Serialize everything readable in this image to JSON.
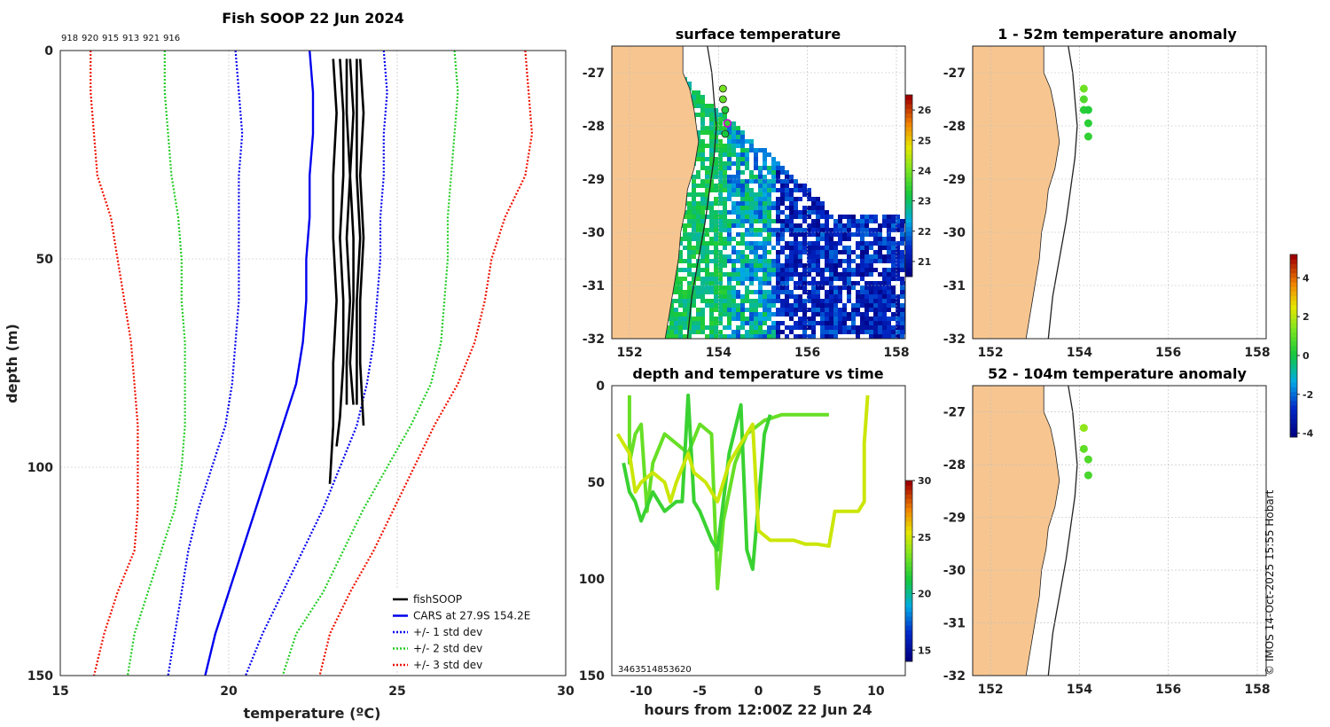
{
  "chart_data": [
    {
      "id": "profile",
      "type": "line",
      "title": "Fish SOOP 22 Jun 2024",
      "xlabel": "temperature (ºC)",
      "ylabel": "depth (m)",
      "xlim": [
        15,
        30
      ],
      "ylim": [
        0,
        150
      ],
      "xticks": [
        "15",
        "20",
        "25",
        "30"
      ],
      "yticks": [
        "0",
        "50",
        "100",
        "150"
      ],
      "probe_ids": [
        "918",
        "920",
        "915",
        "913",
        "921",
        "916"
      ],
      "depth": [
        0,
        10,
        20,
        30,
        40,
        50,
        60,
        70,
        80,
        90,
        100,
        110,
        120,
        130,
        140,
        150
      ],
      "series": [
        {
          "name": "CARS at 27.9S 154.2E",
          "color": "#0000ee",
          "style": "solid",
          "values": [
            22.4,
            22.5,
            22.5,
            22.4,
            22.4,
            22.3,
            22.3,
            22.2,
            22.0,
            21.6,
            21.2,
            20.8,
            20.4,
            20.0,
            19.6,
            19.3
          ]
        },
        {
          "name": "+1 std",
          "color": "#0000ee",
          "style": "dotted",
          "values": [
            24.6,
            24.7,
            24.6,
            24.6,
            24.5,
            24.5,
            24.4,
            24.3,
            24.1,
            23.8,
            23.3,
            22.8,
            22.2,
            21.6,
            21.0,
            20.5
          ]
        },
        {
          "name": "-1 std",
          "color": "#0000ee",
          "style": "dotted",
          "values": [
            20.2,
            20.3,
            20.4,
            20.3,
            20.3,
            20.3,
            20.3,
            20.2,
            20.1,
            19.9,
            19.5,
            19.1,
            18.8,
            18.6,
            18.4,
            18.2
          ]
        },
        {
          "name": "+2 std",
          "color": "#22cc22",
          "style": "dotted",
          "values": [
            26.7,
            26.8,
            26.7,
            26.6,
            26.5,
            26.5,
            26.4,
            26.3,
            26.0,
            25.4,
            24.7,
            24.0,
            23.4,
            22.8,
            22.0,
            21.6
          ]
        },
        {
          "name": "-2 std",
          "color": "#22cc22",
          "style": "dotted",
          "values": [
            18.1,
            18.1,
            18.2,
            18.3,
            18.5,
            18.6,
            18.6,
            18.7,
            18.7,
            18.7,
            18.6,
            18.4,
            18.0,
            17.6,
            17.2,
            17.0
          ]
        },
        {
          "name": "+3 std",
          "color": "#ee1100",
          "style": "dotted",
          "values": [
            28.8,
            28.9,
            29.0,
            28.8,
            28.2,
            27.8,
            27.6,
            27.3,
            26.8,
            26.1,
            25.5,
            24.9,
            24.3,
            23.6,
            23.0,
            22.7
          ]
        },
        {
          "name": "-3 std",
          "color": "#ee1100",
          "style": "dotted",
          "values": [
            15.9,
            15.9,
            16.0,
            16.1,
            16.5,
            16.7,
            16.9,
            17.1,
            17.2,
            17.3,
            17.3,
            17.3,
            17.2,
            16.7,
            16.3,
            16.0
          ]
        }
      ],
      "fishsoop_casts": [
        {
          "depth": [
            2,
            15,
            30,
            45,
            60,
            75,
            90,
            104
          ],
          "temp": [
            23.1,
            23.2,
            23.1,
            23.1,
            23.2,
            23.1,
            23.1,
            23.0
          ]
        },
        {
          "depth": [
            2,
            15,
            30,
            45,
            60,
            75,
            88,
            95
          ],
          "temp": [
            23.3,
            23.4,
            23.4,
            23.3,
            23.4,
            23.4,
            23.3,
            23.2
          ]
        },
        {
          "depth": [
            2,
            15,
            30,
            45,
            60,
            75,
            85
          ],
          "temp": [
            23.5,
            23.5,
            23.6,
            23.5,
            23.6,
            23.5,
            23.5
          ]
        },
        {
          "depth": [
            2,
            15,
            30,
            45,
            60,
            75,
            85
          ],
          "temp": [
            23.6,
            23.7,
            23.6,
            23.7,
            23.7,
            23.6,
            23.7
          ]
        },
        {
          "depth": [
            2,
            15,
            30,
            45,
            60,
            75,
            85
          ],
          "temp": [
            23.8,
            23.8,
            23.8,
            23.9,
            23.8,
            23.8,
            23.8
          ]
        },
        {
          "depth": [
            2,
            15,
            30,
            45,
            60,
            75,
            90
          ],
          "temp": [
            23.9,
            24.0,
            23.9,
            24.0,
            23.9,
            23.9,
            24.0
          ]
        }
      ],
      "legend": {
        "position": "bottom-right",
        "entries": [
          {
            "label": "fishSOOP",
            "color": "#000000",
            "style": "solid"
          },
          {
            "label": "CARS at 27.9S 154.2E",
            "color": "#0000ee",
            "style": "solid"
          },
          {
            "label": "+/- 1 std dev",
            "color": "#0000ee",
            "style": "dotted"
          },
          {
            "label": "+/- 2 std dev",
            "color": "#22cc22",
            "style": "dotted"
          },
          {
            "label": "+/- 3 std dev",
            "color": "#ee1100",
            "style": "dotted"
          }
        ]
      }
    },
    {
      "id": "sst_map",
      "type": "heatmap",
      "title": "surface temperature",
      "xlim": [
        151.6,
        158.2
      ],
      "ylim": [
        -32,
        -26.5
      ],
      "xticks": [
        "152",
        "154",
        "156",
        "158"
      ],
      "yticks": [
        "-27",
        "-28",
        "-29",
        "-30",
        "-31",
        "-32"
      ],
      "colorbar": {
        "min": 20.5,
        "max": 26.5,
        "ticks": [
          "21",
          "22",
          "23",
          "24",
          "25",
          "26"
        ]
      },
      "stations": [
        {
          "lon": 154.1,
          "lat": -27.3,
          "value": 24.0
        },
        {
          "lon": 154.1,
          "lat": -27.5,
          "value": 23.8
        },
        {
          "lon": 154.15,
          "lat": -27.7,
          "value": 23.3
        },
        {
          "lon": 154.2,
          "lat": -27.95,
          "value": 23.5
        },
        {
          "lon": 154.15,
          "lat": -28.15,
          "value": 23.2
        }
      ]
    },
    {
      "id": "depth_time",
      "type": "scatter",
      "title": "depth and temperature vs time",
      "xlabel": "hours from 12:00Z 22 Jun 24",
      "xlim": [
        -12.5,
        12.5
      ],
      "ylim": [
        0,
        150
      ],
      "xticks": [
        "-10",
        "-5",
        "0",
        "5",
        "10"
      ],
      "yticks": [
        "0",
        "50",
        "100",
        "150"
      ],
      "overlap_label": "3463514853620",
      "colorbar": {
        "min": 14,
        "max": 30,
        "ticks": [
          "15",
          "20",
          "25",
          "30"
        ]
      },
      "tracks": [
        {
          "temp": 23.0,
          "points": [
            [
              -11.0,
              5
            ],
            [
              -11.0,
              40
            ],
            [
              -10.5,
              25
            ],
            [
              -10.0,
              20
            ],
            [
              -9.5,
              65
            ],
            [
              -9.0,
              40
            ],
            [
              -8.0,
              25
            ],
            [
              -6.0,
              35
            ],
            [
              -5.0,
              20
            ],
            [
              -4.0,
              25
            ],
            [
              -3.5,
              105
            ],
            [
              -3.0,
              70
            ],
            [
              -2.0,
              40
            ],
            [
              -1.0,
              25
            ],
            [
              0.5,
              18
            ],
            [
              2.0,
              15
            ],
            [
              4.0,
              15
            ],
            [
              6.0,
              15
            ]
          ]
        },
        {
          "temp": 22.0,
          "points": [
            [
              -11.5,
              40
            ],
            [
              -11.0,
              55
            ],
            [
              -10.5,
              60
            ],
            [
              -10.0,
              70
            ],
            [
              -9.0,
              55
            ],
            [
              -8.0,
              65
            ],
            [
              -7.0,
              60
            ],
            [
              -6.5,
              60
            ],
            [
              -6.0,
              5
            ],
            [
              -5.5,
              60
            ],
            [
              -5.0,
              65
            ],
            [
              -4.0,
              80
            ],
            [
              -3.5,
              85
            ],
            [
              -3.0,
              60
            ],
            [
              -2.5,
              35
            ],
            [
              -1.5,
              10
            ],
            [
              -1.0,
              85
            ],
            [
              -0.5,
              95
            ],
            [
              0.0,
              60
            ],
            [
              0.5,
              25
            ],
            [
              1.0,
              15
            ]
          ]
        },
        {
          "temp": 25.0,
          "points": [
            [
              -12.0,
              25
            ],
            [
              -11.0,
              35
            ],
            [
              -10.5,
              55
            ],
            [
              -10.0,
              50
            ],
            [
              -9.0,
              45
            ],
            [
              -8.0,
              50
            ],
            [
              -7.5,
              60
            ],
            [
              -7.0,
              50
            ],
            [
              -6.0,
              35
            ],
            [
              -5.5,
              45
            ],
            [
              -4.5,
              50
            ],
            [
              -3.5,
              60
            ],
            [
              -2.5,
              40
            ],
            [
              -1.5,
              30
            ],
            [
              -0.5,
              20
            ],
            [
              0.0,
              75
            ],
            [
              1.0,
              80
            ],
            [
              2.0,
              80
            ],
            [
              3.0,
              80
            ],
            [
              4.0,
              82
            ],
            [
              5.0,
              82
            ],
            [
              6.0,
              83
            ],
            [
              6.5,
              65
            ],
            [
              8.5,
              65
            ],
            [
              9.0,
              60
            ],
            [
              9.0,
              30
            ],
            [
              9.3,
              5
            ]
          ]
        }
      ]
    },
    {
      "id": "anom_upper",
      "type": "scatter",
      "title": "1 - 52m temperature anomaly",
      "xlim": [
        151.6,
        158.2
      ],
      "ylim": [
        -32,
        -26.5
      ],
      "xticks": [
        "152",
        "154",
        "156",
        "158"
      ],
      "yticks": [
        "-27",
        "-28",
        "-29",
        "-30",
        "-31",
        "-32"
      ],
      "stations": [
        {
          "lon": 154.1,
          "lat": -27.3,
          "value": 1.2
        },
        {
          "lon": 154.1,
          "lat": -27.5,
          "value": 0.8
        },
        {
          "lon": 154.1,
          "lat": -27.7,
          "value": 0.3
        },
        {
          "lon": 154.2,
          "lat": -27.7,
          "value": 0.2
        },
        {
          "lon": 154.2,
          "lat": -27.95,
          "value": 0.3
        },
        {
          "lon": 154.2,
          "lat": -28.2,
          "value": 0.4
        }
      ]
    },
    {
      "id": "anom_lower",
      "type": "scatter",
      "title": "52 - 104m temperature anomaly",
      "xlim": [
        151.6,
        158.2
      ],
      "ylim": [
        -32,
        -26.5
      ],
      "xticks": [
        "152",
        "154",
        "156",
        "158"
      ],
      "yticks": [
        "-27",
        "-28",
        "-29",
        "-30",
        "-31",
        "-32"
      ],
      "stations": [
        {
          "lon": 154.1,
          "lat": -27.3,
          "value": 1.6
        },
        {
          "lon": 154.1,
          "lat": -27.7,
          "value": 1.0
        },
        {
          "lon": 154.2,
          "lat": -27.9,
          "value": 0.8
        },
        {
          "lon": 154.2,
          "lat": -28.2,
          "value": 0.7
        }
      ],
      "colorbar": {
        "min": -4.2,
        "max": 5.2,
        "ticks": [
          "-4",
          "-2",
          "0",
          "2",
          "4"
        ]
      }
    }
  ],
  "copyright": "© IMOS 14-Oct-2025 15:55 Hobart",
  "colors": {
    "land": "#f7c690",
    "fishsoop": "#000000",
    "cars": "#0000ee",
    "std1": "#0000ee",
    "std2": "#22cc22",
    "std3": "#ee1100",
    "station_outline": "#222222",
    "highlight": "#d100d1"
  }
}
